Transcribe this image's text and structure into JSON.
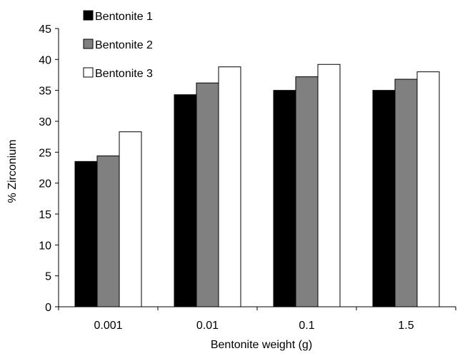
{
  "chart_data": {
    "type": "bar",
    "title": "",
    "xlabel": "Bentonite weight (g)",
    "ylabel": "% Zirconium",
    "categories": [
      "0.001",
      "0.01",
      "0.1",
      "1.5"
    ],
    "ylim": [
      0,
      45
    ],
    "yticks": [
      "0",
      "5",
      "10",
      "15",
      "20",
      "25",
      "30",
      "35",
      "40",
      "45"
    ],
    "grid": false,
    "legend_position": "top-left",
    "series": [
      {
        "name": "Bentonite 1",
        "values": [
          23.5,
          34.3,
          35.0,
          35.0
        ],
        "color": "#000000"
      },
      {
        "name": "Bentonite 2",
        "values": [
          24.4,
          36.2,
          37.2,
          36.8
        ],
        "color": "#808080"
      },
      {
        "name": "Bentonite 3",
        "values": [
          28.3,
          38.8,
          39.2,
          38.0
        ],
        "color": "#ffffff"
      }
    ]
  }
}
